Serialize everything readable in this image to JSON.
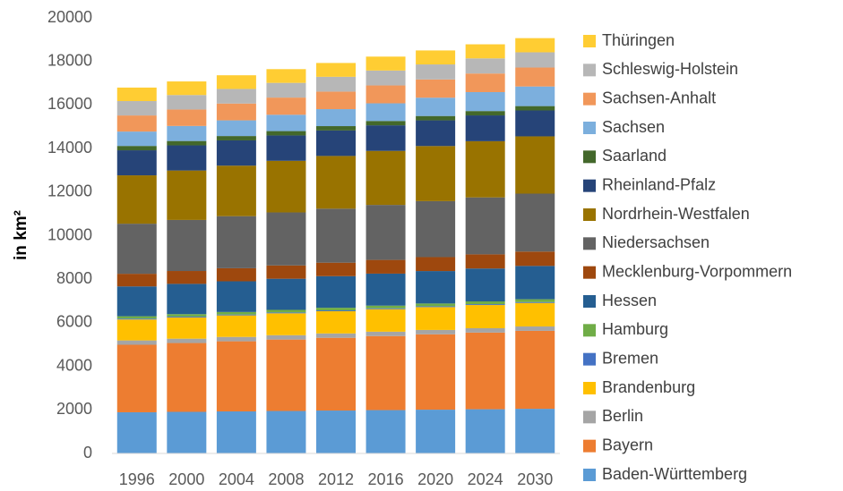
{
  "chart_data": {
    "type": "bar",
    "stacked": true,
    "y_label": "in km²",
    "categories": [
      "1996",
      "2000",
      "2004",
      "2008",
      "2012",
      "2016",
      "2020",
      "2024",
      "2030"
    ],
    "ylim": [
      0,
      20000
    ],
    "yticks": [
      0,
      2000,
      4000,
      6000,
      8000,
      10000,
      12000,
      14000,
      16000,
      18000,
      20000
    ],
    "grid": false,
    "legend": "right",
    "series": [
      {
        "name": "Baden-Württemberg",
        "color": "#5b9bd5",
        "values": [
          1890,
          1910,
          1930,
          1950,
          1970,
          1990,
          2010,
          2030,
          2050
        ]
      },
      {
        "name": "Bayern",
        "color": "#ed7d31",
        "values": [
          3100,
          3160,
          3220,
          3280,
          3340,
          3400,
          3460,
          3520,
          3580
        ]
      },
      {
        "name": "Berlin",
        "color": "#a5a5a5",
        "values": [
          200,
          200,
          200,
          200,
          200,
          200,
          200,
          200,
          200
        ]
      },
      {
        "name": "Brandenburg",
        "color": "#ffc000",
        "values": [
          960,
          975,
          990,
          1005,
          1020,
          1035,
          1050,
          1065,
          1080
        ]
      },
      {
        "name": "Bremen",
        "color": "#4472c4",
        "values": [
          40,
          40,
          40,
          40,
          40,
          40,
          40,
          40,
          40
        ]
      },
      {
        "name": "Hamburg",
        "color": "#70ad47",
        "values": [
          110,
          112,
          115,
          117,
          120,
          122,
          125,
          127,
          130
        ]
      },
      {
        "name": "Hessen",
        "color": "#255e91",
        "values": [
          1370,
          1390,
          1410,
          1430,
          1450,
          1470,
          1490,
          1510,
          1530
        ]
      },
      {
        "name": "Mecklenburg-Vorpommern",
        "color": "#9e480e",
        "values": [
          580,
          590,
          600,
          610,
          620,
          630,
          640,
          650,
          660
        ]
      },
      {
        "name": "Niedersachsen",
        "color": "#636363",
        "values": [
          2300,
          2345,
          2390,
          2435,
          2480,
          2525,
          2570,
          2615,
          2660
        ]
      },
      {
        "name": "Nordrhein-Westfalen",
        "color": "#997300",
        "values": [
          2220,
          2270,
          2320,
          2370,
          2420,
          2480,
          2530,
          2580,
          2630
        ]
      },
      {
        "name": "Rheinland-Pfalz",
        "color": "#264478",
        "values": [
          1150,
          1155,
          1160,
          1165,
          1170,
          1175,
          1180,
          1185,
          1190
        ]
      },
      {
        "name": "Saarland",
        "color": "#43682b",
        "values": [
          200,
          200,
          200,
          200,
          200,
          200,
          200,
          200,
          200
        ]
      },
      {
        "name": "Sachsen",
        "color": "#7cafdd",
        "values": [
          660,
          690,
          720,
          750,
          780,
          810,
          840,
          870,
          900
        ]
      },
      {
        "name": "Sachsen-Anhalt",
        "color": "#f1975a",
        "values": [
          740,
          756,
          772,
          789,
          805,
          821,
          838,
          854,
          870
        ]
      },
      {
        "name": "Schleswig-Holstein",
        "color": "#b7b7b7",
        "values": [
          660,
          665,
          670,
          675,
          680,
          685,
          690,
          695,
          700
        ]
      },
      {
        "name": "Thüringen",
        "color": "#ffcd33",
        "values": [
          620,
          624,
          628,
          631,
          635,
          639,
          642,
          646,
          650
        ]
      }
    ]
  }
}
